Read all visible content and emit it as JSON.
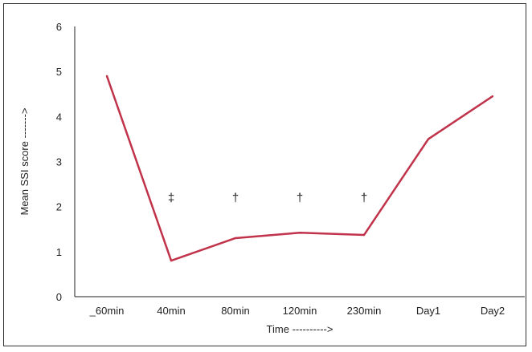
{
  "chart_data": {
    "type": "line",
    "categories": [
      "_60min",
      "40min",
      "80min",
      "120min",
      "230min",
      "Day1",
      "Day2"
    ],
    "series": [
      {
        "values": [
          4.9,
          0.8,
          1.3,
          1.42,
          1.37,
          3.5,
          4.45
        ],
        "color": "#c0334a"
      }
    ],
    "ylim": [
      0,
      6
    ],
    "yticks": [
      "0",
      "1",
      "2",
      "3",
      "4",
      "5",
      "6"
    ],
    "xlabel": "Time ---------->",
    "ylabel": "Mean SSI score ------->",
    "grid": false,
    "annotations": [
      {
        "category": "40min",
        "y": 2.2,
        "text": "‡"
      },
      {
        "category": "80min",
        "y": 2.2,
        "text": "†"
      },
      {
        "category": "120min",
        "y": 2.2,
        "text": "†"
      },
      {
        "category": "230min",
        "y": 2.2,
        "text": "†"
      }
    ]
  }
}
